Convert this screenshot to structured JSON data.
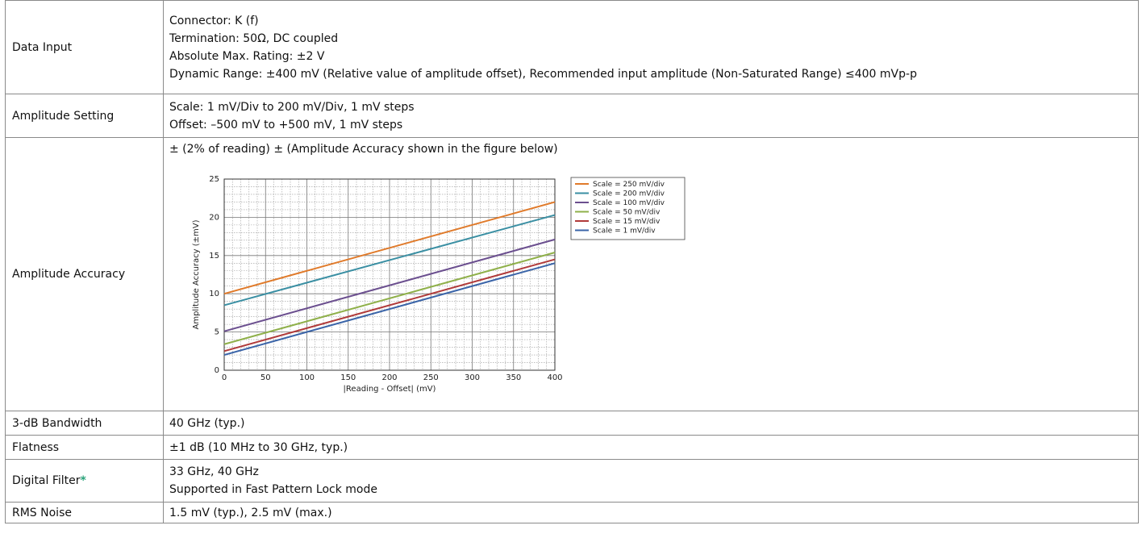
{
  "rows": {
    "data_input": {
      "label": "Data Input",
      "lines": [
        "Connector: K (f)",
        "Termination: 50Ω, DC coupled",
        "Absolute Max. Rating: ±2 V",
        "Dynamic Range: ±400 mV (Relative value of amplitude offset), Recommended input amplitude (Non-Saturated Range) ≤400 mVp-p"
      ]
    },
    "amplitude_setting": {
      "label": "Amplitude Setting",
      "lines": [
        "Scale: 1 mV/Div to 200 mV/Div, 1 mV steps",
        "Offset: –500 mV to +500 mV, 1 mV steps"
      ]
    },
    "amplitude_accuracy": {
      "label": "Amplitude Accuracy",
      "text": "± (2% of reading) ± (Amplitude Accuracy shown in the figure below)"
    },
    "bandwidth": {
      "label": "3-dB Bandwidth",
      "value": "40 GHz (typ.)"
    },
    "flatness": {
      "label": "Flatness",
      "value": "±1 dB  (10 MHz to 30 GHz, typ.)"
    },
    "digital_filter": {
      "label": "Digital Filter",
      "marker": "*",
      "lines": [
        "33 GHz, 40 GHz",
        "Supported in Fast Pattern Lock mode"
      ]
    },
    "rms_noise": {
      "label": "RMS Noise",
      "value": "1.5 mV (typ.), 2.5 mV (max.)"
    }
  },
  "colors": {
    "asterisk": "#2aa37a"
  },
  "chart_data": {
    "type": "line",
    "xlabel": "|Reading - Offset| (mV)",
    "ylabel": "Amplitude Accuracy (±mV)",
    "xlim": [
      0,
      400
    ],
    "ylim": [
      0,
      25
    ],
    "x_ticks": [
      0,
      50,
      100,
      150,
      200,
      250,
      300,
      350,
      400
    ],
    "y_ticks": [
      0,
      5,
      10,
      15,
      20,
      25
    ],
    "grid": true,
    "legend_position": "right",
    "series": [
      {
        "name": "Scale = 250 mV/div",
        "color": "#e07a2a",
        "x": [
          0,
          400
        ],
        "y": [
          10.0,
          22.0
        ]
      },
      {
        "name": "Scale = 200 mV/div",
        "color": "#3a8fa3",
        "x": [
          0,
          400
        ],
        "y": [
          8.5,
          20.3
        ]
      },
      {
        "name": "Scale = 100 mV/div",
        "color": "#6b4f8f",
        "x": [
          0,
          400
        ],
        "y": [
          5.1,
          17.1
        ]
      },
      {
        "name": "Scale = 50 mV/div",
        "color": "#8fb04a",
        "x": [
          0,
          400
        ],
        "y": [
          3.4,
          15.4
        ]
      },
      {
        "name": "Scale = 15 mV/div",
        "color": "#b03a3a",
        "x": [
          0,
          400
        ],
        "y": [
          2.5,
          14.5
        ]
      },
      {
        "name": "Scale = 1 mV/div",
        "color": "#3a64a8",
        "x": [
          0,
          400
        ],
        "y": [
          2.0,
          14.0
        ]
      }
    ]
  }
}
